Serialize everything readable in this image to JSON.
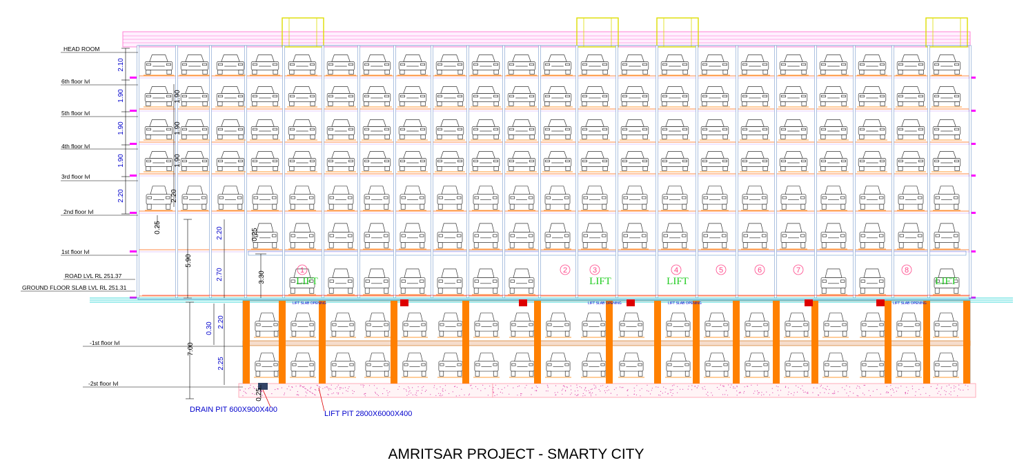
{
  "title": "AMRITSAR PROJECT - SMARTY CITY",
  "level_labels": {
    "head_room": "HEAD ROOM",
    "f6": "6th floor lvl",
    "f5": "5th floor lvl",
    "f4": "4th floor lvl",
    "f3": "3rd floor lvl",
    "f2": "2nd floor lvl",
    "f1": "1st floor lvl",
    "road": "ROAD LVL RL 251.37",
    "ground_slab": "GROUND FLOOR SLAB LVL RL 251.31",
    "b1": "-1st floor lvl",
    "b2": "-2st floor lvl"
  },
  "dimensions": {
    "head_room": "2.10",
    "f6": "1.90",
    "f5": "1.90",
    "f4": "1.90",
    "f2": "2.20",
    "slab": "0.25",
    "upper_total": "5.90",
    "f1": "2.20",
    "f1_slab": "0.25",
    "ground_a": "2.70",
    "ground_b": "3.30",
    "basement_slab": "0.30",
    "b1": "2.20",
    "basement_total": "7.00",
    "b2": "2.25",
    "pit": "0.25"
  },
  "lift_label": "LIFT",
  "lift_numbers": [
    "1",
    "2",
    "3",
    "4",
    "5",
    "6",
    "7",
    "8"
  ],
  "lift_slab_opening": "LIFT SLAB OPENING",
  "notes": {
    "drain_pit": "DRAIN PIT 600X900X400",
    "lift_pit": "LIFT PIT 2800X6000X400"
  },
  "colors": {
    "column": "#ff8000",
    "slab_line": "#ff00ff",
    "lift_frame": "#dddd00",
    "dimension": "#0000cc",
    "lift_text": "#22cc22",
    "marker": "#dd0000"
  }
}
